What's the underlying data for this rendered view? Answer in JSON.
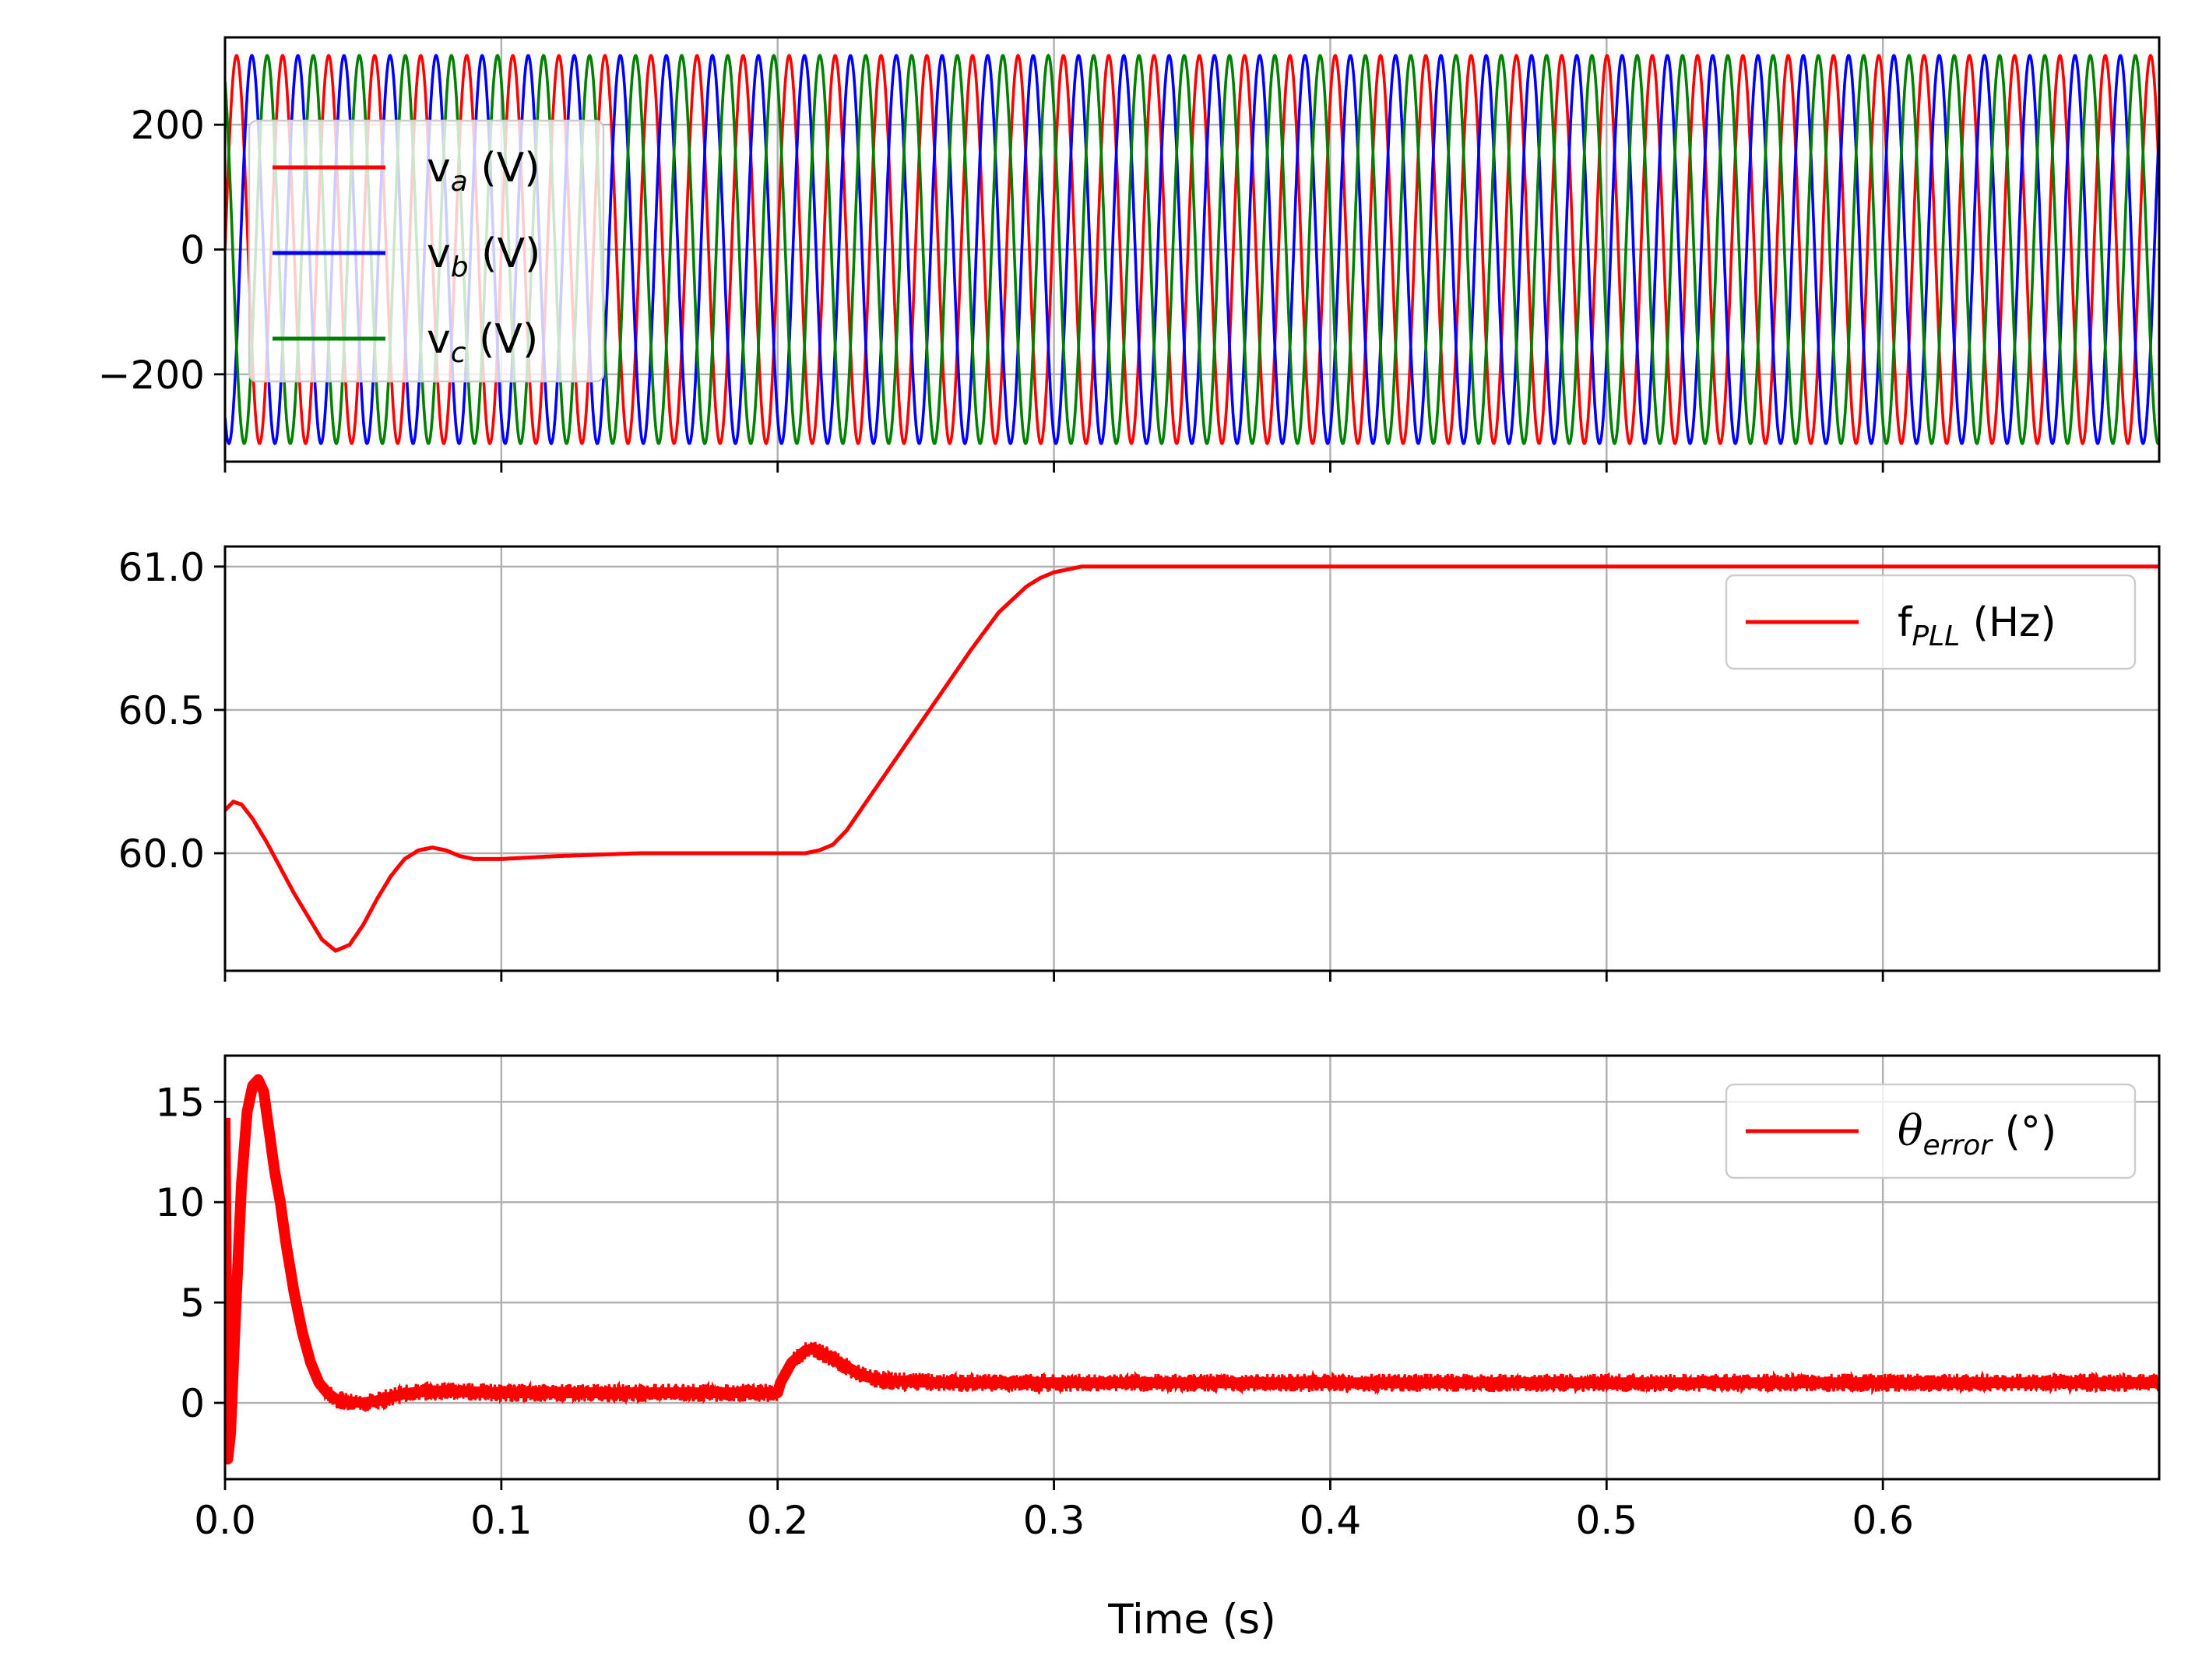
{
  "chart_data": [
    {
      "type": "line",
      "title": "",
      "xlabel": "",
      "ylabel": "",
      "xlim": [
        0,
        0.7
      ],
      "ylim": [
        -340,
        340
      ],
      "yticks": [
        -200,
        0,
        200
      ],
      "ytick_labels": [
        "−200",
        "0",
        "200"
      ],
      "grid": true,
      "legend_position": "upper-left",
      "description_of_signal": "three-phase sinusoids, amplitude about 311 V; frequency about 60 Hz rising to 61 Hz after t = 0.2 s",
      "series": [
        {
          "name": "v_a (V)",
          "label_main": "v",
          "label_sub": "a",
          "label_tail": " (V)",
          "color": "#ff0000",
          "amplitude": 311,
          "phase_deg": 0
        },
        {
          "name": "v_b (V)",
          "label_main": "v",
          "label_sub": "b",
          "label_tail": " (V)",
          "color": "#0000ff",
          "amplitude": 311,
          "phase_deg": -120
        },
        {
          "name": "v_c (V)",
          "label_main": "v",
          "label_sub": "c",
          "label_tail": " (V)",
          "color": "#008000",
          "amplitude": 311,
          "phase_deg": 120
        }
      ]
    },
    {
      "type": "line",
      "title": "",
      "xlabel": "",
      "ylabel": "",
      "xlim": [
        0,
        0.7
      ],
      "ylim": [
        59.59,
        61.07
      ],
      "yticks": [
        60.0,
        60.5,
        61.0
      ],
      "ytick_labels": [
        "60.0",
        "60.5",
        "61.0"
      ],
      "grid": true,
      "legend_position": "upper-right",
      "series": [
        {
          "name": "f_PLL (Hz)",
          "label_main": "f",
          "label_sub": "PLL",
          "label_tail": " (Hz)",
          "color": "#ff0000",
          "x": [
            0,
            0.003,
            0.006,
            0.01,
            0.015,
            0.02,
            0.025,
            0.03,
            0.035,
            0.04,
            0.045,
            0.05,
            0.055,
            0.06,
            0.065,
            0.07,
            0.075,
            0.08,
            0.085,
            0.09,
            0.1,
            0.12,
            0.15,
            0.2,
            0.21,
            0.215,
            0.22,
            0.225,
            0.23,
            0.24,
            0.25,
            0.26,
            0.27,
            0.28,
            0.29,
            0.295,
            0.3,
            0.305,
            0.31,
            0.32,
            0.35,
            0.7
          ],
          "y": [
            60.15,
            60.18,
            60.17,
            60.12,
            60.04,
            59.95,
            59.86,
            59.78,
            59.7,
            59.66,
            59.68,
            59.75,
            59.84,
            59.92,
            59.98,
            60.01,
            60.02,
            60.01,
            59.99,
            59.98,
            59.98,
            59.99,
            60.0,
            60.0,
            60.0,
            60.01,
            60.03,
            60.08,
            60.15,
            60.29,
            60.43,
            60.57,
            60.71,
            60.84,
            60.93,
            60.96,
            60.98,
            60.99,
            61.0,
            61.0,
            61.0,
            61.0
          ]
        }
      ]
    },
    {
      "type": "line",
      "title": "",
      "xlabel": "Time (s)",
      "ylabel": "",
      "xlim": [
        0,
        0.7
      ],
      "ylim": [
        -3.8,
        17.3
      ],
      "yticks": [
        0,
        5,
        10,
        15
      ],
      "ytick_labels": [
        "0",
        "5",
        "10",
        "15"
      ],
      "xticks": [
        0.0,
        0.1,
        0.2,
        0.3,
        0.4,
        0.5,
        0.6
      ],
      "xtick_labels": [
        "0.0",
        "0.1",
        "0.2",
        "0.3",
        "0.4",
        "0.5",
        "0.6"
      ],
      "grid": true,
      "legend_position": "upper-right",
      "series": [
        {
          "name": "θ_error (°)",
          "label_main": "θ",
          "label_sub": "error",
          "label_tail": " (°)",
          "color": "#ff0000",
          "x": [
            0,
            0.001,
            0.002,
            0.004,
            0.006,
            0.008,
            0.01,
            0.012,
            0.014,
            0.016,
            0.018,
            0.02,
            0.022,
            0.025,
            0.028,
            0.031,
            0.034,
            0.037,
            0.04,
            0.043,
            0.046,
            0.05,
            0.055,
            0.06,
            0.065,
            0.07,
            0.08,
            0.09,
            0.1,
            0.15,
            0.2,
            0.201,
            0.205,
            0.21,
            0.213,
            0.216,
            0.22,
            0.225,
            0.23,
            0.235,
            0.24,
            0.25,
            0.26,
            0.3,
            0.5,
            0.7
          ],
          "y": [
            14.2,
            -2.8,
            -1.5,
            5.0,
            11.0,
            14.5,
            15.8,
            16.1,
            15.5,
            13.5,
            11.5,
            10.0,
            8.0,
            5.5,
            3.5,
            2.0,
            1.0,
            0.5,
            0.2,
            0.1,
            0.05,
            0.0,
            0.1,
            0.3,
            0.45,
            0.55,
            0.6,
            0.55,
            0.5,
            0.5,
            0.5,
            1.0,
            2.0,
            2.6,
            2.7,
            2.5,
            2.2,
            1.8,
            1.4,
            1.2,
            1.1,
            1.05,
            1.0,
            1.0,
            1.0,
            1.0
          ]
        }
      ]
    }
  ]
}
